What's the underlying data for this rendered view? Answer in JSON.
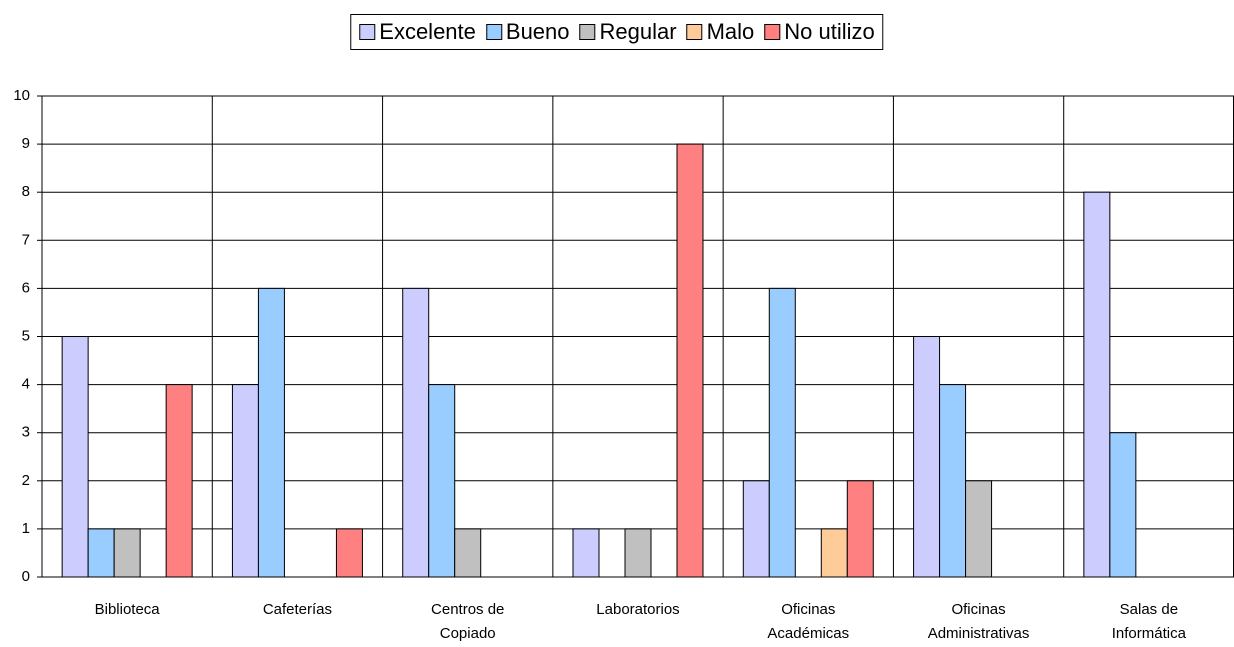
{
  "chart_data": {
    "type": "bar",
    "categories": [
      "Biblioteca",
      "Cafeterías",
      "Centros de Copiado",
      "Laboratorios",
      "Oficinas Académicas",
      "Oficinas Administrativas",
      "Salas de Informática"
    ],
    "series": [
      {
        "name": "Excelente",
        "color": "#ccccff",
        "values": [
          5,
          4,
          6,
          1,
          2,
          5,
          8
        ]
      },
      {
        "name": "Bueno",
        "color": "#99ccff",
        "values": [
          1,
          6,
          4,
          0,
          6,
          4,
          3
        ]
      },
      {
        "name": "Regular",
        "color": "#c0c0c0",
        "values": [
          1,
          0,
          1,
          1,
          0,
          2,
          0
        ]
      },
      {
        "name": "Malo",
        "color": "#ffcc99",
        "values": [
          0,
          0,
          0,
          0,
          1,
          0,
          0
        ]
      },
      {
        "name": "No utilizo",
        "color": "#ff8080",
        "values": [
          4,
          1,
          0,
          9,
          2,
          0,
          0
        ]
      }
    ],
    "ylim": [
      0,
      10
    ],
    "yticks": [
      0,
      1,
      2,
      3,
      4,
      5,
      6,
      7,
      8,
      9,
      10
    ],
    "grid": true,
    "legend": "top"
  }
}
